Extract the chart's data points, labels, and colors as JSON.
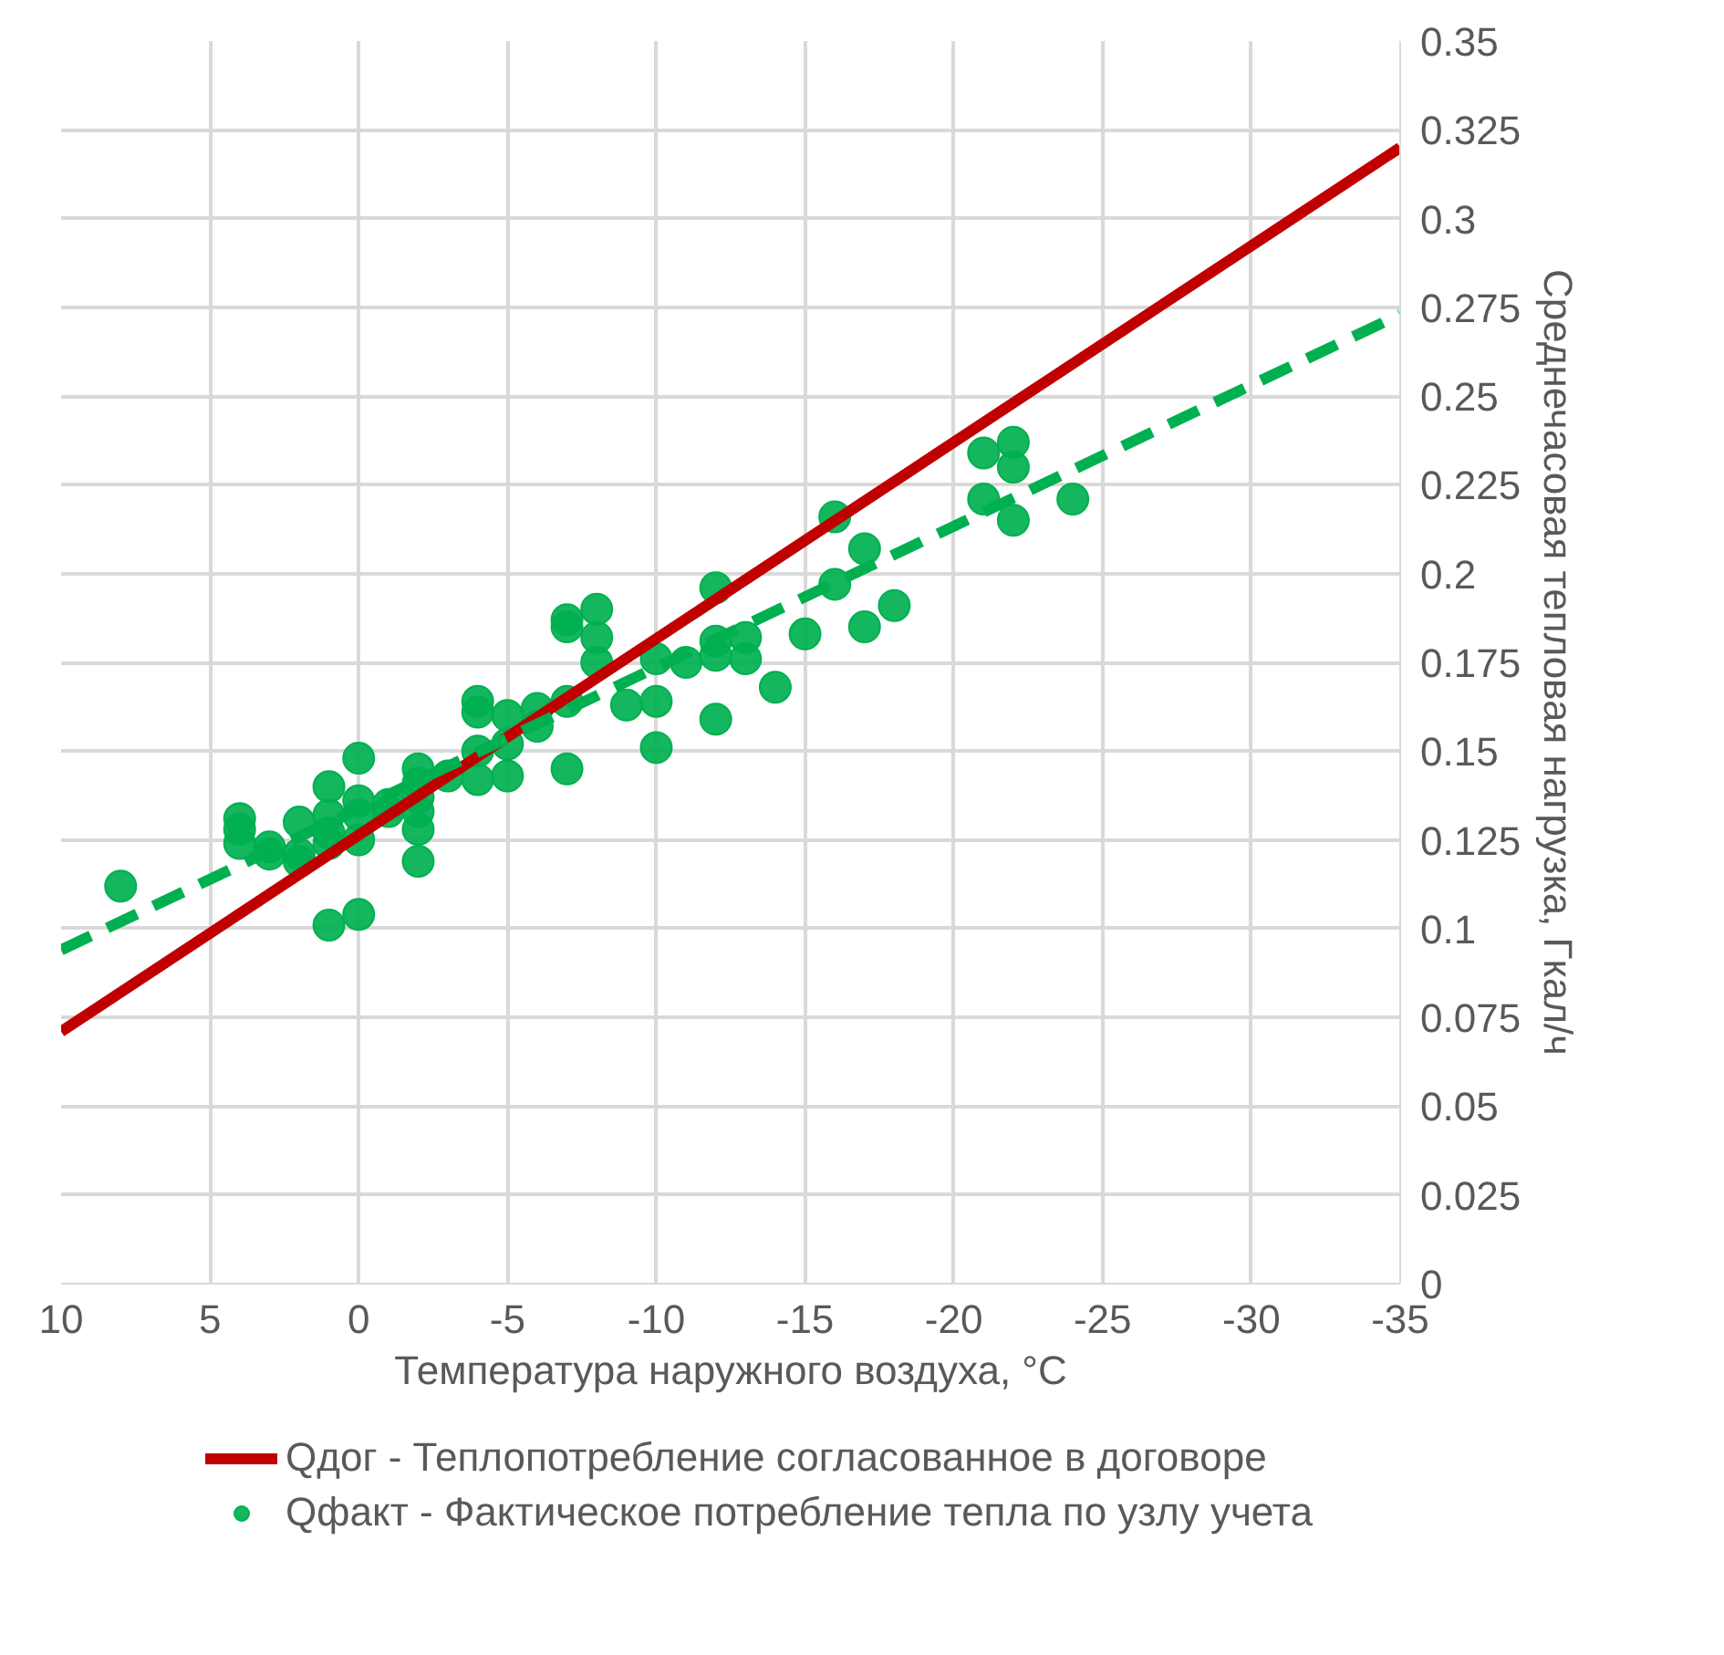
{
  "chart_data": {
    "type": "scatter",
    "xlabel": "Температура наружного воздуха, °C",
    "ylabel": "Среднечасовая тепловая нагрузка, Гкал/ч",
    "xlim": [
      10,
      -35
    ],
    "xticks": [
      10,
      5,
      0,
      -5,
      -10,
      -15,
      -20,
      -25,
      -30,
      -35
    ],
    "ylim": [
      0,
      0.35
    ],
    "yticks": [
      0,
      0.025,
      0.05,
      0.075,
      0.1,
      0.125,
      0.15,
      0.175,
      0.2,
      0.225,
      0.25,
      0.275,
      0.3,
      0.325,
      0.35
    ],
    "grid": true,
    "legend": "bottom",
    "series": [
      {
        "type": "line",
        "name": "Qдог - Теплопотребление согласованное в договоре",
        "color": "#c00000",
        "line_style": "solid",
        "x": [
          10,
          -35
        ],
        "values": [
          0.071,
          0.32
        ]
      },
      {
        "name": "Qфакт - Фактическое потребление тепла по узлу учета",
        "color": "#00b050",
        "marker": "circle",
        "x": [
          8,
          4,
          4,
          4,
          3,
          3,
          2,
          2,
          2,
          1,
          1,
          1,
          1,
          1,
          0,
          0,
          0,
          0,
          0,
          -1,
          -1,
          -2,
          -2,
          -2,
          -2,
          -2,
          -2,
          -3,
          -4,
          -4,
          -4,
          -4,
          -5,
          -5,
          -5,
          -6,
          -6,
          -7,
          -7,
          -7,
          -7,
          -8,
          -8,
          -8,
          -9,
          -10,
          -10,
          -10,
          -11,
          -12,
          -12,
          -12,
          -12,
          -13,
          -13,
          -14,
          -15,
          -16,
          -16,
          -17,
          -17,
          -18,
          -21,
          -21,
          -22,
          -22,
          -22,
          -24
        ],
        "values": [
          0.112,
          0.131,
          0.128,
          0.124,
          0.123,
          0.121,
          0.13,
          0.121,
          0.119,
          0.14,
          0.132,
          0.127,
          0.124,
          0.101,
          0.148,
          0.136,
          0.132,
          0.125,
          0.104,
          0.135,
          0.133,
          0.145,
          0.141,
          0.137,
          0.133,
          0.128,
          0.119,
          0.143,
          0.164,
          0.161,
          0.15,
          0.142,
          0.16,
          0.152,
          0.143,
          0.162,
          0.157,
          0.187,
          0.185,
          0.164,
          0.145,
          0.19,
          0.182,
          0.175,
          0.163,
          0.176,
          0.164,
          0.151,
          0.175,
          0.196,
          0.181,
          0.177,
          0.159,
          0.182,
          0.176,
          0.168,
          0.183,
          0.216,
          0.197,
          0.207,
          0.185,
          0.191,
          0.234,
          0.221,
          0.237,
          0.23,
          0.215,
          0.221
        ]
      },
      {
        "type": "line",
        "color": "#00b050",
        "line_style": "dashed",
        "x": [
          10,
          -35
        ],
        "values": [
          0.094,
          0.273
        ]
      }
    ]
  }
}
